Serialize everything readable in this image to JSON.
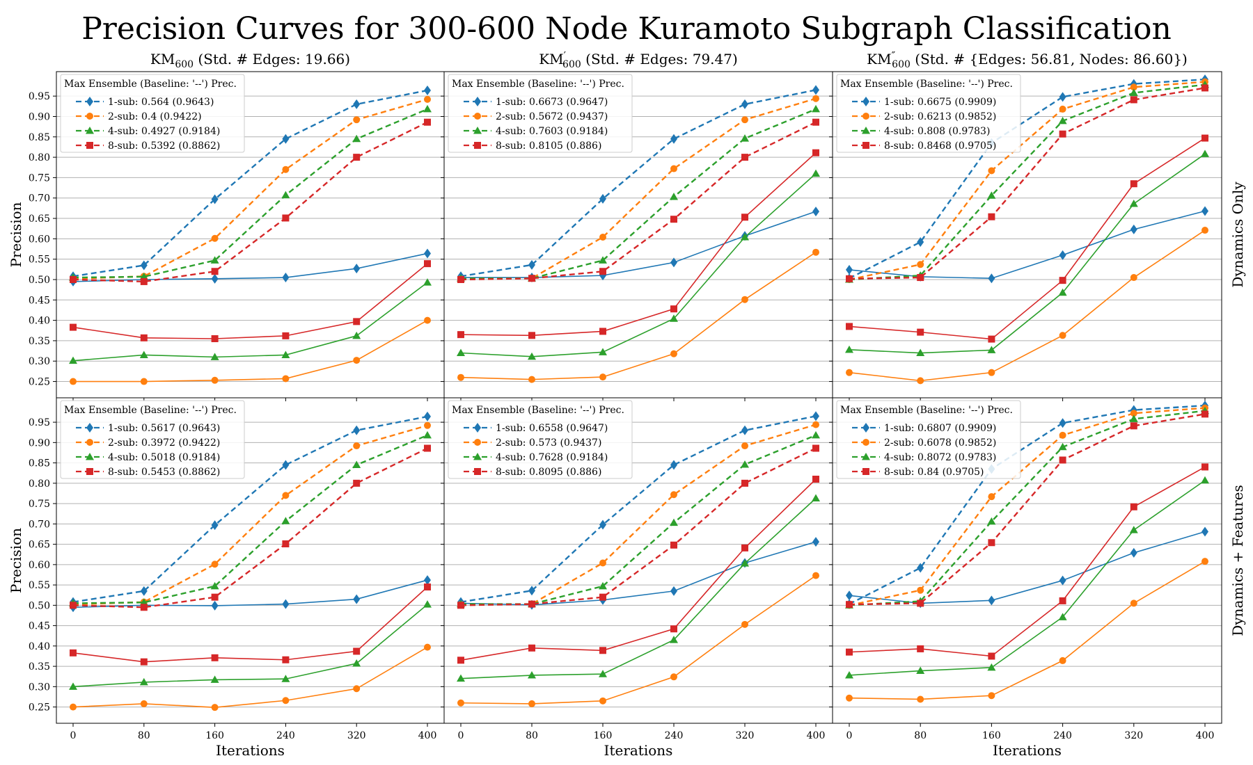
{
  "title": "Precision Curves for 300-600 Node Kuramoto Subgraph Classification",
  "colors": {
    "1-sub": "#1f77b4",
    "2-sub": "#ff7f0e",
    "4-sub": "#2ca02c",
    "8-sub": "#d62728"
  },
  "markers": {
    "1-sub": "diamond",
    "2-sub": "circle",
    "4-sub": "triangle",
    "8-sub": "square"
  },
  "xlabel": "Iterations",
  "ylabel": "Precision",
  "x": [
    0,
    80,
    160,
    240,
    320,
    400
  ],
  "yticks": [
    "0.25",
    "0.30",
    "0.35",
    "0.40",
    "0.45",
    "0.50",
    "0.55",
    "0.60",
    "0.65",
    "0.70",
    "0.75",
    "0.80",
    "0.85",
    "0.90",
    "0.95"
  ],
  "ylim": [
    0.21,
    1.01
  ],
  "legend_title": "Max Ensemble (Baseline: '--') Prec.",
  "col_titles": [
    {
      "base": "KM",
      "sup": "",
      "sub": "600",
      "rest": " (Std. # Edges: 19.66)"
    },
    {
      "base": "KM",
      "sup": "′",
      "sub": "600",
      "rest": " (Std. # Edges: 79.47)"
    },
    {
      "base": "KM",
      "sup": "″",
      "sub": "600",
      "rest": " (Std. # {Edges: 56.81, Nodes: 86.60})"
    }
  ],
  "row_labels": [
    "Dynamics Only",
    "Dynamics + Features"
  ],
  "chart_data": [
    {
      "type": "line",
      "row": 0,
      "col": 0,
      "legend": [
        "1-sub: 0.564 (0.9643)",
        "2-sub: 0.4 (0.9422)",
        "4-sub: 0.4927 (0.9184)",
        "8-sub: 0.5392 (0.8862)"
      ],
      "series": [
        {
          "name": "1-sub",
          "values": [
            0.495,
            0.5,
            0.502,
            0.505,
            0.527,
            0.564
          ]
        },
        {
          "name": "2-sub",
          "values": [
            0.25,
            0.25,
            0.253,
            0.257,
            0.302,
            0.4
          ]
        },
        {
          "name": "4-sub",
          "values": [
            0.301,
            0.315,
            0.31,
            0.315,
            0.362,
            0.493
          ]
        },
        {
          "name": "8-sub",
          "values": [
            0.383,
            0.357,
            0.355,
            0.362,
            0.397,
            0.539
          ]
        }
      ],
      "baselines": [
        {
          "name": "1-sub",
          "values": [
            0.508,
            0.535,
            0.697,
            0.845,
            0.93,
            0.964
          ]
        },
        {
          "name": "2-sub",
          "values": [
            0.502,
            0.508,
            0.601,
            0.77,
            0.892,
            0.942
          ]
        },
        {
          "name": "4-sub",
          "values": [
            0.505,
            0.507,
            0.547,
            0.707,
            0.845,
            0.918
          ]
        },
        {
          "name": "8-sub",
          "values": [
            0.5,
            0.495,
            0.52,
            0.651,
            0.8,
            0.886
          ]
        }
      ]
    },
    {
      "type": "line",
      "row": 0,
      "col": 1,
      "legend": [
        "1-sub: 0.6673 (0.9647)",
        "2-sub: 0.5672 (0.9437)",
        "4-sub: 0.7603 (0.9184)",
        "8-sub: 0.8105 (0.886)"
      ],
      "series": [
        {
          "name": "1-sub",
          "values": [
            0.505,
            0.505,
            0.51,
            0.542,
            0.607,
            0.667
          ]
        },
        {
          "name": "2-sub",
          "values": [
            0.26,
            0.255,
            0.261,
            0.318,
            0.451,
            0.567
          ]
        },
        {
          "name": "4-sub",
          "values": [
            0.32,
            0.311,
            0.322,
            0.404,
            0.604,
            0.76
          ]
        },
        {
          "name": "8-sub",
          "values": [
            0.365,
            0.363,
            0.373,
            0.428,
            0.653,
            0.811
          ]
        }
      ],
      "baselines": [
        {
          "name": "1-sub",
          "values": [
            0.508,
            0.536,
            0.698,
            0.845,
            0.93,
            0.965
          ]
        },
        {
          "name": "2-sub",
          "values": [
            0.502,
            0.503,
            0.604,
            0.772,
            0.892,
            0.944
          ]
        },
        {
          "name": "4-sub",
          "values": [
            0.503,
            0.503,
            0.547,
            0.703,
            0.846,
            0.918
          ]
        },
        {
          "name": "8-sub",
          "values": [
            0.5,
            0.503,
            0.52,
            0.648,
            0.8,
            0.886
          ]
        }
      ]
    },
    {
      "type": "line",
      "row": 0,
      "col": 2,
      "legend": [
        "1-sub: 0.6675 (0.9909)",
        "2-sub: 0.6213 (0.9852)",
        "4-sub: 0.808 (0.9783)",
        "8-sub: 0.8468 (0.9705)"
      ],
      "series": [
        {
          "name": "1-sub",
          "values": [
            0.524,
            0.507,
            0.503,
            0.56,
            0.623,
            0.668
          ]
        },
        {
          "name": "2-sub",
          "values": [
            0.272,
            0.252,
            0.272,
            0.363,
            0.505,
            0.621
          ]
        },
        {
          "name": "4-sub",
          "values": [
            0.328,
            0.32,
            0.327,
            0.468,
            0.686,
            0.808
          ]
        },
        {
          "name": "8-sub",
          "values": [
            0.385,
            0.371,
            0.354,
            0.498,
            0.735,
            0.847
          ]
        }
      ],
      "baselines": [
        {
          "name": "1-sub",
          "values": [
            0.503,
            0.592,
            0.835,
            0.948,
            0.98,
            0.991
          ]
        },
        {
          "name": "2-sub",
          "values": [
            0.5,
            0.537,
            0.767,
            0.918,
            0.972,
            0.985
          ]
        },
        {
          "name": "4-sub",
          "values": [
            0.5,
            0.51,
            0.706,
            0.889,
            0.958,
            0.978
          ]
        },
        {
          "name": "8-sub",
          "values": [
            0.502,
            0.505,
            0.654,
            0.857,
            0.941,
            0.97
          ]
        }
      ]
    },
    {
      "type": "line",
      "row": 1,
      "col": 0,
      "legend": [
        "1-sub: 0.5617 (0.9643)",
        "2-sub: 0.3972 (0.9422)",
        "4-sub: 0.5018 (0.9184)",
        "8-sub: 0.5453 (0.8862)"
      ],
      "series": [
        {
          "name": "1-sub",
          "values": [
            0.495,
            0.5,
            0.499,
            0.503,
            0.515,
            0.562
          ]
        },
        {
          "name": "2-sub",
          "values": [
            0.25,
            0.258,
            0.249,
            0.266,
            0.295,
            0.397
          ]
        },
        {
          "name": "4-sub",
          "values": [
            0.3,
            0.311,
            0.317,
            0.319,
            0.357,
            0.502
          ]
        },
        {
          "name": "8-sub",
          "values": [
            0.383,
            0.361,
            0.371,
            0.366,
            0.387,
            0.545
          ]
        }
      ],
      "baselines": [
        {
          "name": "1-sub",
          "values": [
            0.508,
            0.535,
            0.697,
            0.845,
            0.93,
            0.964
          ]
        },
        {
          "name": "2-sub",
          "values": [
            0.502,
            0.508,
            0.601,
            0.77,
            0.892,
            0.942
          ]
        },
        {
          "name": "4-sub",
          "values": [
            0.505,
            0.507,
            0.547,
            0.707,
            0.845,
            0.918
          ]
        },
        {
          "name": "8-sub",
          "values": [
            0.5,
            0.495,
            0.52,
            0.651,
            0.8,
            0.886
          ]
        }
      ]
    },
    {
      "type": "line",
      "row": 1,
      "col": 1,
      "legend": [
        "1-sub: 0.6558 (0.9647)",
        "2-sub: 0.573 (0.9437)",
        "4-sub: 0.7628 (0.9184)",
        "8-sub: 0.8095 (0.886)"
      ],
      "series": [
        {
          "name": "1-sub",
          "values": [
            0.505,
            0.501,
            0.513,
            0.535,
            0.604,
            0.656
          ]
        },
        {
          "name": "2-sub",
          "values": [
            0.26,
            0.258,
            0.265,
            0.324,
            0.453,
            0.573
          ]
        },
        {
          "name": "4-sub",
          "values": [
            0.32,
            0.328,
            0.331,
            0.415,
            0.603,
            0.763
          ]
        },
        {
          "name": "8-sub",
          "values": [
            0.365,
            0.395,
            0.389,
            0.442,
            0.641,
            0.81
          ]
        }
      ],
      "baselines": [
        {
          "name": "1-sub",
          "values": [
            0.508,
            0.536,
            0.698,
            0.845,
            0.93,
            0.965
          ]
        },
        {
          "name": "2-sub",
          "values": [
            0.502,
            0.503,
            0.604,
            0.772,
            0.892,
            0.944
          ]
        },
        {
          "name": "4-sub",
          "values": [
            0.503,
            0.503,
            0.547,
            0.703,
            0.846,
            0.918
          ]
        },
        {
          "name": "8-sub",
          "values": [
            0.5,
            0.503,
            0.52,
            0.648,
            0.8,
            0.886
          ]
        }
      ]
    },
    {
      "type": "line",
      "row": 1,
      "col": 2,
      "legend": [
        "1-sub: 0.6807 (0.9909)",
        "2-sub: 0.6078 (0.9852)",
        "4-sub: 0.8072 (0.9783)",
        "8-sub: 0.84 (0.9705)"
      ],
      "series": [
        {
          "name": "1-sub",
          "values": [
            0.524,
            0.505,
            0.512,
            0.561,
            0.629,
            0.681
          ]
        },
        {
          "name": "2-sub",
          "values": [
            0.272,
            0.269,
            0.278,
            0.364,
            0.505,
            0.608
          ]
        },
        {
          "name": "4-sub",
          "values": [
            0.328,
            0.339,
            0.347,
            0.471,
            0.685,
            0.807
          ]
        },
        {
          "name": "8-sub",
          "values": [
            0.385,
            0.393,
            0.375,
            0.511,
            0.742,
            0.84
          ]
        }
      ],
      "baselines": [
        {
          "name": "1-sub",
          "values": [
            0.503,
            0.592,
            0.835,
            0.948,
            0.98,
            0.991
          ]
        },
        {
          "name": "2-sub",
          "values": [
            0.5,
            0.537,
            0.767,
            0.918,
            0.972,
            0.985
          ]
        },
        {
          "name": "4-sub",
          "values": [
            0.5,
            0.51,
            0.706,
            0.889,
            0.958,
            0.978
          ]
        },
        {
          "name": "8-sub",
          "values": [
            0.502,
            0.505,
            0.654,
            0.857,
            0.941,
            0.97
          ]
        }
      ]
    }
  ]
}
